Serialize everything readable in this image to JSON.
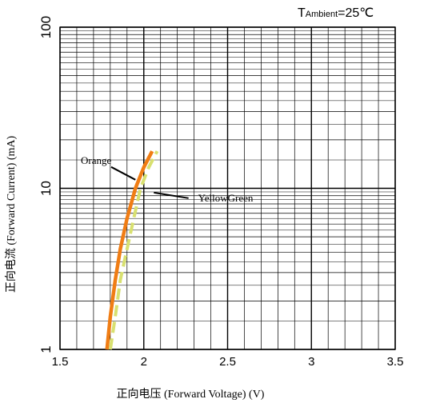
{
  "chart_data": {
    "type": "line",
    "title": "",
    "condition": {
      "prefix": "T",
      "sub": "Ambient",
      "suffix": "=25℃"
    },
    "xlabel": "正向电压 (Forward Voltage) (V)",
    "ylabel": "正向电流 (Forward Current) (mA)",
    "x_ticks": [
      "1.5",
      "2",
      "2.5",
      "3",
      "3.5"
    ],
    "y_ticks": [
      "1",
      "10",
      "100"
    ],
    "xlim": [
      1.5,
      3.5
    ],
    "ylim": [
      1,
      100
    ],
    "yscale": "log",
    "grid": true,
    "series": [
      {
        "name": "Orange",
        "color": "#f07d14",
        "style": "solid",
        "points": [
          [
            1.78,
            1
          ],
          [
            1.8,
            1.6
          ],
          [
            1.83,
            2.7
          ],
          [
            1.86,
            4.2
          ],
          [
            1.9,
            6.5
          ],
          [
            1.95,
            10
          ],
          [
            2.0,
            13.5
          ],
          [
            2.05,
            17
          ]
        ]
      },
      {
        "name": "YellowGreen",
        "color": "#d8e070",
        "style": "dashed",
        "points": [
          [
            1.8,
            1
          ],
          [
            1.83,
            1.6
          ],
          [
            1.86,
            2.7
          ],
          [
            1.9,
            4.2
          ],
          [
            1.94,
            6.5
          ],
          [
            1.98,
            10
          ],
          [
            2.03,
            13.5
          ],
          [
            2.08,
            17
          ]
        ]
      }
    ],
    "annotations": [
      {
        "text": "Orange",
        "series": "Orange",
        "at": [
          1.5,
          14.2
        ],
        "pointer": [
          1.95,
          11.3
        ]
      },
      {
        "text": "YellowGreen",
        "series": "YellowGreen",
        "at": [
          2.2,
          8.3
        ],
        "pointer": [
          2.06,
          9.4
        ]
      }
    ]
  }
}
